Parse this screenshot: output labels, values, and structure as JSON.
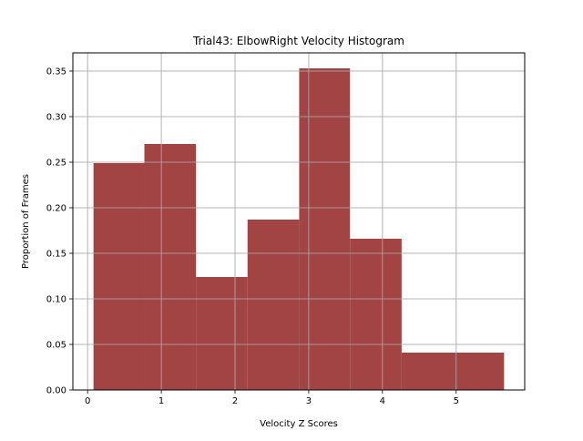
{
  "chart_data": {
    "type": "bar",
    "title": "Trial43: ElbowRight Velocity Histogram",
    "xlabel": "Velocity Z Scores",
    "ylabel": "Proportion of Frames",
    "bins": [
      {
        "x0": 0.08,
        "x1": 0.77,
        "value": 0.249
      },
      {
        "x0": 0.77,
        "x1": 1.47,
        "value": 0.27
      },
      {
        "x0": 1.47,
        "x1": 2.17,
        "value": 0.124
      },
      {
        "x0": 2.17,
        "x1": 2.87,
        "value": 0.187
      },
      {
        "x0": 2.87,
        "x1": 3.56,
        "value": 0.353
      },
      {
        "x0": 3.56,
        "x1": 4.26,
        "value": 0.166
      },
      {
        "x0": 4.26,
        "x1": 4.96,
        "value": 0.041
      },
      {
        "x0": 4.96,
        "x1": 5.65,
        "value": 0.041
      }
    ],
    "xlim": [
      -0.2,
      5.93
    ],
    "ylim": [
      0,
      0.37
    ],
    "xticks": [
      0,
      1,
      2,
      3,
      4,
      5
    ],
    "xtick_labels": [
      "0",
      "1",
      "2",
      "3",
      "4",
      "5"
    ],
    "yticks": [
      0,
      0.05,
      0.1,
      0.15,
      0.2,
      0.25,
      0.3,
      0.35
    ],
    "ytick_labels": [
      "0.00",
      "0.05",
      "0.10",
      "0.15",
      "0.20",
      "0.25",
      "0.30",
      "0.35"
    ],
    "grid": true,
    "legend": "none",
    "colors": {
      "bar": "#a04040",
      "grid": "#b0b0b0",
      "axes": "#000000"
    }
  }
}
